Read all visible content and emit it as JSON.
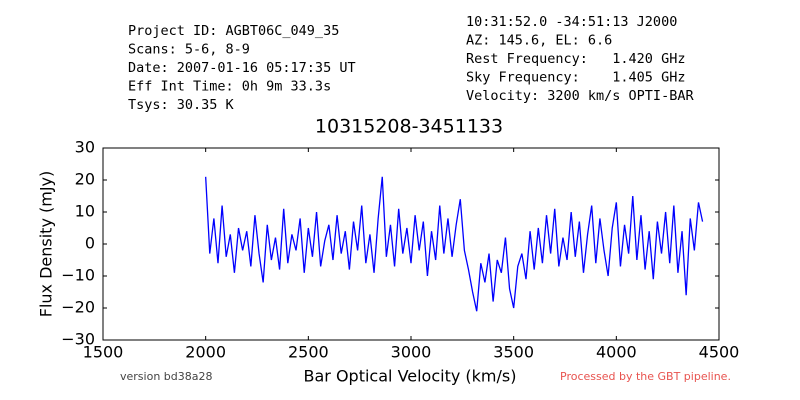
{
  "chart_data": {
    "type": "line",
    "header_left": [
      "Project ID: AGBT06C_049_35",
      "Scans: 5-6, 8-9",
      "Date: 2007-01-16 05:17:35 UT",
      "Eff Int Time: 0h 9m 33.3s",
      "Tsys: 30.35 K"
    ],
    "header_right": [
      "10:31:52.0 -34:51:13 J2000",
      "AZ: 145.6, EL: 6.6",
      "Rest Frequency:   1.420 GHz",
      "Sky Frequency:    1.405 GHz",
      "Velocity: 3200 km/s OPTI-BAR"
    ],
    "title": "10315208-3451133",
    "xlabel": "Bar Optical Velocity (km/s)",
    "ylabel": "Flux Density (mJy)",
    "footer_left": "version bd38a28",
    "footer_right": "Processed by the GBT pipeline.",
    "xlim": [
      1500,
      4500
    ],
    "xticks": [
      1500,
      2000,
      2500,
      3000,
      3500,
      4000,
      4500
    ],
    "ylim": [
      -30,
      30
    ],
    "yticks": [
      {
        "value": -30,
        "label": "−30"
      },
      {
        "value": -20,
        "label": "−20"
      },
      {
        "value": -10,
        "label": "−10"
      },
      0,
      10,
      20,
      30
    ],
    "series": [
      {
        "color": "#0000ff",
        "x": [
          2000,
          2020,
          2040,
          2060,
          2080,
          2100,
          2120,
          2140,
          2160,
          2180,
          2200,
          2220,
          2240,
          2260,
          2280,
          2300,
          2320,
          2340,
          2360,
          2380,
          2400,
          2420,
          2440,
          2460,
          2480,
          2500,
          2520,
          2540,
          2560,
          2580,
          2600,
          2620,
          2640,
          2660,
          2680,
          2700,
          2720,
          2740,
          2760,
          2780,
          2800,
          2820,
          2840,
          2860,
          2880,
          2900,
          2920,
          2940,
          2960,
          2980,
          3000,
          3020,
          3040,
          3060,
          3080,
          3100,
          3120,
          3140,
          3160,
          3180,
          3200,
          3220,
          3240,
          3260,
          3280,
          3300,
          3320,
          3340,
          3360,
          3380,
          3400,
          3420,
          3440,
          3460,
          3480,
          3500,
          3520,
          3540,
          3560,
          3580,
          3600,
          3620,
          3640,
          3660,
          3680,
          3700,
          3720,
          3740,
          3760,
          3780,
          3800,
          3820,
          3840,
          3860,
          3880,
          3900,
          3920,
          3940,
          3960,
          3980,
          4000,
          4020,
          4040,
          4060,
          4080,
          4100,
          4120,
          4140,
          4160,
          4180,
          4200,
          4220,
          4240,
          4260,
          4280,
          4300,
          4320,
          4340,
          4360,
          4380,
          4400,
          4420
        ],
        "values": [
          21,
          -3,
          8,
          -6,
          12,
          -4,
          3,
          -9,
          5,
          -2,
          4,
          -7,
          9,
          -3,
          -12,
          6,
          -5,
          2,
          -8,
          11,
          -6,
          3,
          -2,
          8,
          -9,
          5,
          -4,
          10,
          -7,
          1,
          6,
          -5,
          9,
          -3,
          4,
          -8,
          7,
          -2,
          12,
          -6,
          3,
          -9,
          8,
          21,
          -4,
          6,
          -7,
          11,
          -3,
          5,
          -6,
          9,
          -2,
          7,
          -10,
          4,
          -5,
          12,
          -3,
          8,
          -4,
          6,
          14,
          -2,
          -8,
          -15,
          -21,
          -6,
          -12,
          -3,
          -18,
          -5,
          -9,
          2,
          -14,
          -20,
          -7,
          -3,
          -11,
          4,
          -8,
          5,
          -6,
          9,
          -3,
          11,
          -7,
          2,
          -5,
          10,
          -4,
          7,
          -9,
          3,
          12,
          -6,
          8,
          -2,
          -10,
          5,
          13,
          -7,
          6,
          -3,
          15,
          -5,
          9,
          -8,
          4,
          -11,
          7,
          -3,
          10,
          -6,
          12,
          -9,
          4,
          -16,
          8,
          -2,
          13,
          7
        ]
      }
    ]
  }
}
